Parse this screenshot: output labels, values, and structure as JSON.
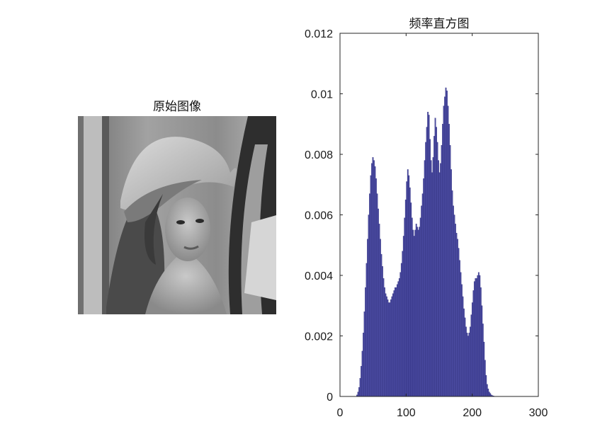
{
  "left_panel": {
    "title": "原始图像"
  },
  "chart_data": {
    "type": "bar",
    "title": "频率直方图",
    "xlabel": "",
    "ylabel": "",
    "xlim": [
      0,
      300
    ],
    "ylim": [
      0,
      0.012
    ],
    "xticks": [
      "0",
      "100",
      "200",
      "300"
    ],
    "yticks": [
      "0",
      "0.002",
      "0.004",
      "0.006",
      "0.008",
      "0.01",
      "0.012"
    ],
    "grid": false,
    "bar_color": "#4a4aa0",
    "bar_edge_color": "#2a2a7a",
    "x_start": 25,
    "values": [
      5e-05,
      0.00015,
      0.0003,
      0.0006,
      0.001,
      0.0015,
      0.0021,
      0.0028,
      0.0036,
      0.0044,
      0.0052,
      0.006,
      0.0067,
      0.0073,
      0.0077,
      0.0079,
      0.0078,
      0.0076,
      0.0072,
      0.0067,
      0.0062,
      0.0057,
      0.0052,
      0.0047,
      0.0043,
      0.0039,
      0.0036,
      0.0034,
      0.0033,
      0.0032,
      0.0031,
      0.0031,
      0.0032,
      0.0033,
      0.0034,
      0.0035,
      0.0036,
      0.0036,
      0.0037,
      0.0038,
      0.0039,
      0.0041,
      0.0044,
      0.0048,
      0.0053,
      0.0059,
      0.0065,
      0.0071,
      0.0075,
      0.0073,
      0.0069,
      0.0064,
      0.0059,
      0.0055,
      0.0053,
      0.0055,
      0.0057,
      0.0056,
      0.0055,
      0.0056,
      0.0059,
      0.0063,
      0.0067,
      0.0072,
      0.0078,
      0.0084,
      0.0089,
      0.0094,
      0.0093,
      0.0085,
      0.0078,
      0.0074,
      0.0079,
      0.0086,
      0.0092,
      0.0089,
      0.0084,
      0.0078,
      0.0074,
      0.0077,
      0.0083,
      0.009,
      0.0096,
      0.0099,
      0.0102,
      0.0101,
      0.0096,
      0.009,
      0.0083,
      0.0075,
      0.0068,
      0.0063,
      0.006,
      0.0057,
      0.0054,
      0.0052,
      0.0049,
      0.0045,
      0.0041,
      0.0037,
      0.0033,
      0.0029,
      0.0026,
      0.0023,
      0.0021,
      0.002,
      0.0021,
      0.0023,
      0.0027,
      0.0031,
      0.0035,
      0.0038,
      0.0039,
      0.0039,
      0.004,
      0.0041,
      0.004,
      0.0036,
      0.003,
      0.0024,
      0.0018,
      0.0012,
      0.0007,
      0.0004,
      0.00025,
      0.00015,
      0.0001,
      5e-05,
      3e-05,
      2e-05
    ]
  }
}
